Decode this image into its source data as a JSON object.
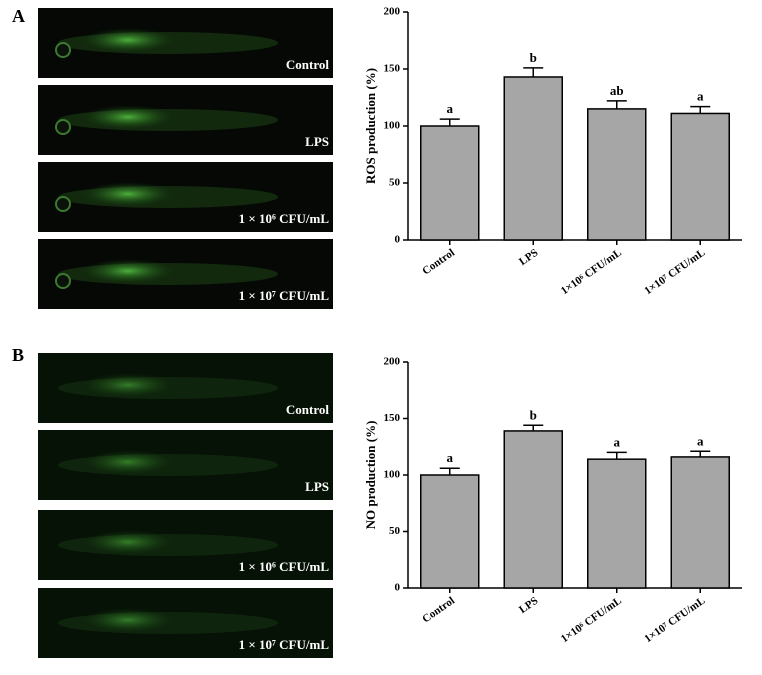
{
  "panels": [
    {
      "label": "A",
      "images": [
        "Control",
        "LPS",
        "1 × 10⁶ CFU/mL",
        "1 × 10⁷ CFU/mL"
      ]
    },
    {
      "label": "B",
      "images": [
        "Control",
        "LPS",
        "1 × 10⁶ CFU/mL",
        "1 × 10⁷ CFU/mL"
      ]
    }
  ],
  "chart_data": [
    {
      "type": "bar",
      "y_label": "ROS production (%)",
      "categories": [
        "Control",
        "LPS",
        "1×10⁶ CFU/mL",
        "1×10⁷ CFU/mL"
      ],
      "values": [
        100,
        143,
        115,
        111
      ],
      "errors": [
        6,
        8,
        7,
        6
      ],
      "annotations": [
        "a",
        "b",
        "ab",
        "a"
      ],
      "color": "#a6a6a6",
      "ylim": [
        0,
        200
      ],
      "yticks": [
        0,
        50,
        100,
        150,
        200
      ]
    },
    {
      "type": "bar",
      "y_label": "NO production (%)",
      "categories": [
        "Control",
        "LPS",
        "1×10⁶ CFU/mL",
        "1×10⁷ CFU/mL"
      ],
      "values": [
        100,
        139,
        114,
        116
      ],
      "errors": [
        6,
        5,
        6,
        5
      ],
      "annotations": [
        "a",
        "b",
        "a",
        "a"
      ],
      "color": "#a6a6a6",
      "ylim": [
        0,
        200
      ],
      "yticks": [
        0,
        50,
        100,
        150,
        200
      ]
    }
  ]
}
